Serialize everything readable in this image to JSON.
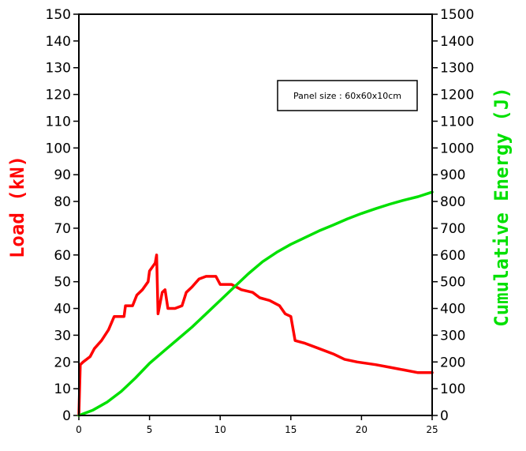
{
  "chart_data": {
    "type": "line",
    "title": "",
    "xlabel": "",
    "xlim": [
      0,
      25
    ],
    "x_ticks": [
      0,
      5,
      10,
      15,
      20,
      25
    ],
    "y_left": {
      "label": "Load (kN)",
      "color": "#ff0000",
      "lim": [
        0,
        150
      ],
      "ticks": [
        0,
        10,
        20,
        30,
        40,
        50,
        60,
        70,
        80,
        90,
        100,
        110,
        120,
        130,
        140,
        150
      ]
    },
    "y_right": {
      "label": "Cumulative Energy (J)",
      "color": "#00e000",
      "lim": [
        0,
        1500
      ],
      "ticks": [
        0,
        100,
        200,
        300,
        400,
        500,
        600,
        700,
        800,
        900,
        1000,
        1100,
        1200,
        1300,
        1400,
        1500
      ]
    },
    "annotation": "Panel size : 60x60x10cm",
    "grid": false,
    "series": [
      {
        "axis": "left",
        "color": "#ff0000",
        "points": [
          [
            0,
            0
          ],
          [
            0.1,
            19
          ],
          [
            0.3,
            20
          ],
          [
            0.8,
            22
          ],
          [
            1.1,
            25
          ],
          [
            1.6,
            28
          ],
          [
            2.1,
            32
          ],
          [
            2.5,
            37
          ],
          [
            3.2,
            37
          ],
          [
            3.3,
            41
          ],
          [
            3.8,
            41
          ],
          [
            4.1,
            45
          ],
          [
            4.5,
            47
          ],
          [
            4.9,
            50
          ],
          [
            5.0,
            54
          ],
          [
            5.4,
            57
          ],
          [
            5.5,
            60
          ],
          [
            5.6,
            38
          ],
          [
            5.9,
            46
          ],
          [
            6.1,
            47
          ],
          [
            6.3,
            40
          ],
          [
            6.8,
            40
          ],
          [
            7.3,
            41
          ],
          [
            7.6,
            46
          ],
          [
            8.0,
            48
          ],
          [
            8.5,
            51
          ],
          [
            9.0,
            52
          ],
          [
            9.7,
            52
          ],
          [
            10.0,
            49
          ],
          [
            10.8,
            49
          ],
          [
            11.5,
            47
          ],
          [
            12.3,
            46
          ],
          [
            12.8,
            44
          ],
          [
            13.5,
            43
          ],
          [
            14.2,
            41
          ],
          [
            14.6,
            38
          ],
          [
            15.0,
            37
          ],
          [
            15.3,
            28
          ],
          [
            16.0,
            27
          ],
          [
            17.0,
            25
          ],
          [
            18.0,
            23
          ],
          [
            18.8,
            21
          ],
          [
            19.7,
            20
          ],
          [
            21.0,
            19
          ],
          [
            22.0,
            18
          ],
          [
            23.0,
            17
          ],
          [
            24.0,
            16
          ],
          [
            25.0,
            16
          ]
        ]
      },
      {
        "axis": "right",
        "color": "#00e000",
        "points": [
          [
            0,
            0
          ],
          [
            1,
            20
          ],
          [
            2,
            50
          ],
          [
            3,
            90
          ],
          [
            4,
            140
          ],
          [
            5,
            195
          ],
          [
            6,
            240
          ],
          [
            7,
            285
          ],
          [
            8,
            330
          ],
          [
            9,
            380
          ],
          [
            10,
            430
          ],
          [
            11,
            480
          ],
          [
            12,
            530
          ],
          [
            13,
            575
          ],
          [
            14,
            610
          ],
          [
            15,
            640
          ],
          [
            16,
            665
          ],
          [
            17,
            690
          ],
          [
            18,
            712
          ],
          [
            19,
            735
          ],
          [
            20,
            755
          ],
          [
            21,
            773
          ],
          [
            22,
            790
          ],
          [
            23,
            805
          ],
          [
            24,
            818
          ],
          [
            25,
            835
          ]
        ]
      }
    ]
  }
}
